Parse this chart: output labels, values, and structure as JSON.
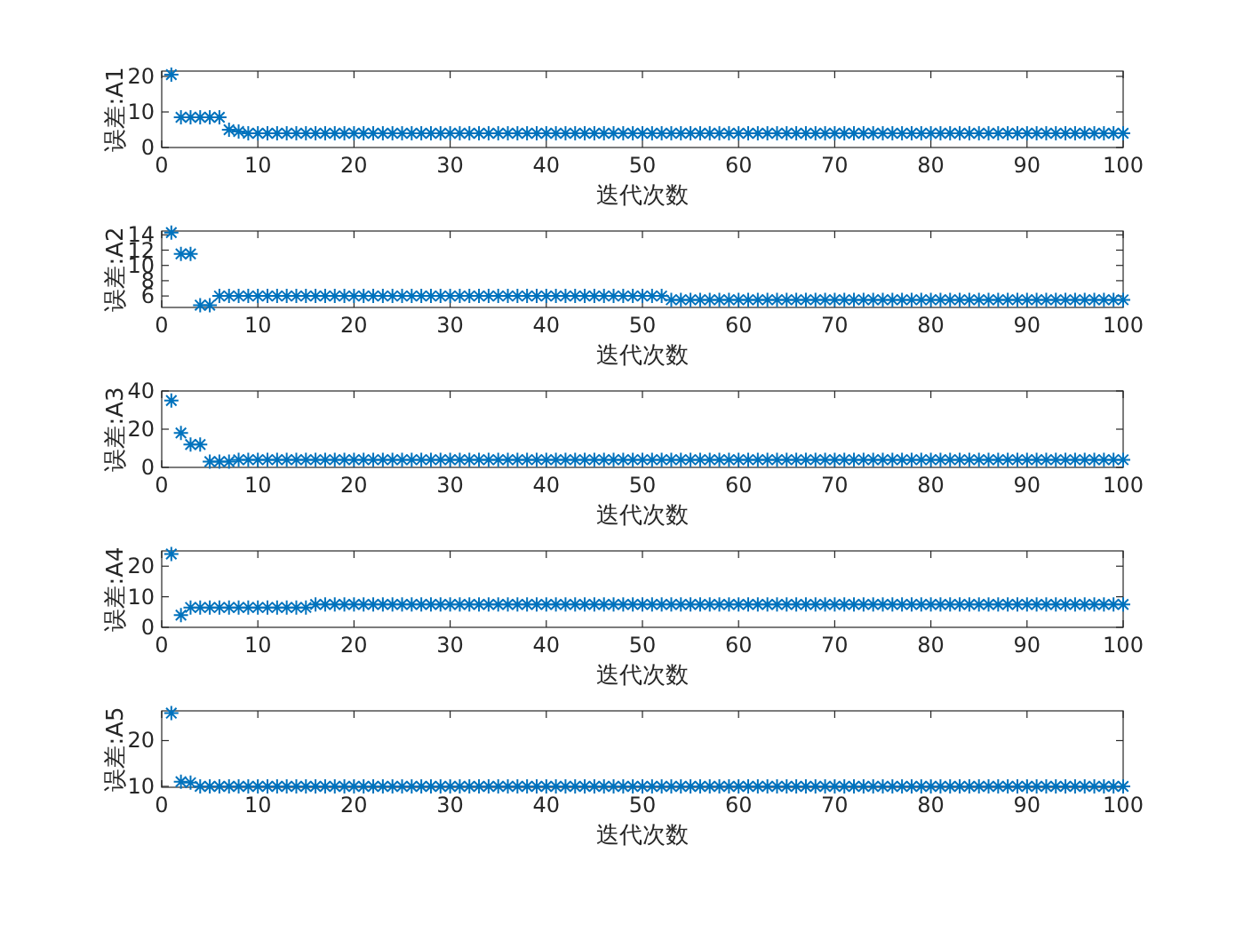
{
  "chart_data": [
    {
      "type": "scatter",
      "marker": "cross",
      "grid": false,
      "xlabel": "迭代次数",
      "ylabel": "误差:A1",
      "xlim": [
        0,
        100
      ],
      "xticks": [
        0,
        10,
        20,
        30,
        40,
        50,
        60,
        70,
        80,
        90,
        100
      ],
      "ylim": [
        0,
        21.5
      ],
      "yticks": [
        0,
        10,
        20
      ],
      "x": [
        1,
        2,
        3,
        4,
        5,
        6,
        7,
        8,
        9,
        10,
        11,
        12,
        13,
        14,
        15,
        16,
        17,
        18,
        19,
        20,
        21,
        22,
        23,
        24,
        25,
        26,
        27,
        28,
        29,
        30,
        31,
        32,
        33,
        34,
        35,
        36,
        37,
        38,
        39,
        40,
        41,
        42,
        43,
        44,
        45,
        46,
        47,
        48,
        49,
        50,
        51,
        52,
        53,
        54,
        55,
        56,
        57,
        58,
        59,
        60,
        61,
        62,
        63,
        64,
        65,
        66,
        67,
        68,
        69,
        70,
        71,
        72,
        73,
        74,
        75,
        76,
        77,
        78,
        79,
        80,
        81,
        82,
        83,
        84,
        85,
        86,
        87,
        88,
        89,
        90,
        91,
        92,
        93,
        94,
        95,
        96,
        97,
        98,
        99,
        100
      ],
      "series": [
        {
          "color": "#0072bd",
          "values": [
            20.5,
            8.5,
            8.5,
            8.5,
            8.5,
            8.5,
            5,
            4.5,
            4,
            4,
            4,
            4,
            4,
            4,
            4,
            4,
            4,
            4,
            4,
            4,
            4,
            4,
            4,
            4,
            4,
            4,
            4,
            4,
            4,
            4,
            4,
            4,
            4,
            4,
            4,
            4,
            4,
            4,
            4,
            4,
            4,
            4,
            4,
            4,
            4,
            4,
            4,
            4,
            4,
            4,
            4,
            4,
            4,
            4,
            4,
            4,
            4,
            4,
            4,
            4,
            4,
            4,
            4,
            4,
            4,
            4,
            4,
            4,
            4,
            4,
            4,
            4,
            4,
            4,
            4,
            4,
            4,
            4,
            4,
            4,
            4,
            4,
            4,
            4,
            4,
            4,
            4,
            4,
            4,
            4,
            4,
            4,
            4,
            4,
            4,
            4,
            4,
            4,
            4,
            4
          ]
        }
      ]
    },
    {
      "type": "scatter",
      "marker": "cross",
      "grid": false,
      "xlabel": "迭代次数",
      "ylabel": "误差:A2",
      "xlim": [
        0,
        100
      ],
      "xticks": [
        0,
        10,
        20,
        30,
        40,
        50,
        60,
        70,
        80,
        90,
        100
      ],
      "ylim": [
        4.5,
        14.5
      ],
      "yticks": [
        6,
        8,
        10,
        12,
        14
      ],
      "x": [
        1,
        2,
        3,
        4,
        5,
        6,
        7,
        8,
        9,
        10,
        11,
        12,
        13,
        14,
        15,
        16,
        17,
        18,
        19,
        20,
        21,
        22,
        23,
        24,
        25,
        26,
        27,
        28,
        29,
        30,
        31,
        32,
        33,
        34,
        35,
        36,
        37,
        38,
        39,
        40,
        41,
        42,
        43,
        44,
        45,
        46,
        47,
        48,
        49,
        50,
        51,
        52,
        53,
        54,
        55,
        56,
        57,
        58,
        59,
        60,
        61,
        62,
        63,
        64,
        65,
        66,
        67,
        68,
        69,
        70,
        71,
        72,
        73,
        74,
        75,
        76,
        77,
        78,
        79,
        80,
        81,
        82,
        83,
        84,
        85,
        86,
        87,
        88,
        89,
        90,
        91,
        92,
        93,
        94,
        95,
        96,
        97,
        98,
        99,
        100
      ],
      "series": [
        {
          "color": "#0072bd",
          "values": [
            14.3,
            11.5,
            11.5,
            4.8,
            4.8,
            6,
            6,
            6,
            6,
            6,
            6,
            6,
            6,
            6,
            6,
            6,
            6,
            6,
            6,
            6,
            6,
            6,
            6,
            6,
            6,
            6,
            6,
            6,
            6,
            6,
            6,
            6,
            6,
            6,
            6,
            6,
            6,
            6,
            6,
            6,
            6,
            6,
            6,
            6,
            6,
            6,
            6,
            6,
            6,
            6,
            6,
            6,
            5.5,
            5.5,
            5.5,
            5.5,
            5.5,
            5.5,
            5.5,
            5.5,
            5.5,
            5.5,
            5.5,
            5.5,
            5.5,
            5.5,
            5.5,
            5.5,
            5.5,
            5.5,
            5.5,
            5.5,
            5.5,
            5.5,
            5.5,
            5.5,
            5.5,
            5.5,
            5.5,
            5.5,
            5.5,
            5.5,
            5.5,
            5.5,
            5.5,
            5.5,
            5.5,
            5.5,
            5.5,
            5.5,
            5.5,
            5.5,
            5.5,
            5.5,
            5.5,
            5.5,
            5.5,
            5.5,
            5.5,
            5.5
          ]
        }
      ]
    },
    {
      "type": "scatter",
      "marker": "cross",
      "grid": false,
      "xlabel": "迭代次数",
      "ylabel": "误差:A3",
      "xlim": [
        0,
        100
      ],
      "xticks": [
        0,
        10,
        20,
        30,
        40,
        50,
        60,
        70,
        80,
        90,
        100
      ],
      "ylim": [
        0,
        40
      ],
      "yticks": [
        0,
        20,
        40
      ],
      "x": [
        1,
        2,
        3,
        4,
        5,
        6,
        7,
        8,
        9,
        10,
        11,
        12,
        13,
        14,
        15,
        16,
        17,
        18,
        19,
        20,
        21,
        22,
        23,
        24,
        25,
        26,
        27,
        28,
        29,
        30,
        31,
        32,
        33,
        34,
        35,
        36,
        37,
        38,
        39,
        40,
        41,
        42,
        43,
        44,
        45,
        46,
        47,
        48,
        49,
        50,
        51,
        52,
        53,
        54,
        55,
        56,
        57,
        58,
        59,
        60,
        61,
        62,
        63,
        64,
        65,
        66,
        67,
        68,
        69,
        70,
        71,
        72,
        73,
        74,
        75,
        76,
        77,
        78,
        79,
        80,
        81,
        82,
        83,
        84,
        85,
        86,
        87,
        88,
        89,
        90,
        91,
        92,
        93,
        94,
        95,
        96,
        97,
        98,
        99,
        100
      ],
      "series": [
        {
          "color": "#0072bd",
          "values": [
            35,
            18,
            12,
            12,
            3,
            3,
            3,
            4,
            4,
            4,
            4,
            4,
            4,
            4,
            4,
            4,
            4,
            4,
            4,
            4,
            4,
            4,
            4,
            4,
            4,
            4,
            4,
            4,
            4,
            4,
            4,
            4,
            4,
            4,
            4,
            4,
            4,
            4,
            4,
            4,
            4,
            4,
            4,
            4,
            4,
            4,
            4,
            4,
            4,
            4,
            4,
            4,
            4,
            4,
            4,
            4,
            4,
            4,
            4,
            4,
            4,
            4,
            4,
            4,
            4,
            4,
            4,
            4,
            4,
            4,
            4,
            4,
            4,
            4,
            4,
            4,
            4,
            4,
            4,
            4,
            4,
            4,
            4,
            4,
            4,
            4,
            4,
            4,
            4,
            4,
            4,
            4,
            4,
            4,
            4,
            4,
            4,
            4,
            4,
            4
          ]
        }
      ]
    },
    {
      "type": "scatter",
      "marker": "cross",
      "grid": false,
      "xlabel": "迭代次数",
      "ylabel": "误差:A4",
      "xlim": [
        0,
        100
      ],
      "xticks": [
        0,
        10,
        20,
        30,
        40,
        50,
        60,
        70,
        80,
        90,
        100
      ],
      "ylim": [
        0,
        25
      ],
      "yticks": [
        0,
        10,
        20
      ],
      "x": [
        1,
        2,
        3,
        4,
        5,
        6,
        7,
        8,
        9,
        10,
        11,
        12,
        13,
        14,
        15,
        16,
        17,
        18,
        19,
        20,
        21,
        22,
        23,
        24,
        25,
        26,
        27,
        28,
        29,
        30,
        31,
        32,
        33,
        34,
        35,
        36,
        37,
        38,
        39,
        40,
        41,
        42,
        43,
        44,
        45,
        46,
        47,
        48,
        49,
        50,
        51,
        52,
        53,
        54,
        55,
        56,
        57,
        58,
        59,
        60,
        61,
        62,
        63,
        64,
        65,
        66,
        67,
        68,
        69,
        70,
        71,
        72,
        73,
        74,
        75,
        76,
        77,
        78,
        79,
        80,
        81,
        82,
        83,
        84,
        85,
        86,
        87,
        88,
        89,
        90,
        91,
        92,
        93,
        94,
        95,
        96,
        97,
        98,
        99,
        100
      ],
      "series": [
        {
          "color": "#0072bd",
          "values": [
            24,
            4,
            6.5,
            6.5,
            6.5,
            6.5,
            6.5,
            6.5,
            6.5,
            6.5,
            6.5,
            6.5,
            6.5,
            6.5,
            6.5,
            7.5,
            7.5,
            7.5,
            7.5,
            7.5,
            7.5,
            7.5,
            7.5,
            7.5,
            7.5,
            7.5,
            7.5,
            7.5,
            7.5,
            7.5,
            7.5,
            7.5,
            7.5,
            7.5,
            7.5,
            7.5,
            7.5,
            7.5,
            7.5,
            7.5,
            7.5,
            7.5,
            7.5,
            7.5,
            7.5,
            7.5,
            7.5,
            7.5,
            7.5,
            7.5,
            7.5,
            7.5,
            7.5,
            7.5,
            7.5,
            7.5,
            7.5,
            7.5,
            7.5,
            7.5,
            7.5,
            7.5,
            7.5,
            7.5,
            7.5,
            7.5,
            7.5,
            7.5,
            7.5,
            7.5,
            7.5,
            7.5,
            7.5,
            7.5,
            7.5,
            7.5,
            7.5,
            7.5,
            7.5,
            7.5,
            7.5,
            7.5,
            7.5,
            7.5,
            7.5,
            7.5,
            7.5,
            7.5,
            7.5,
            7.5,
            7.5,
            7.5,
            7.5,
            7.5,
            7.5,
            7.5,
            7.5,
            7.5,
            7.5,
            7.5
          ]
        }
      ]
    },
    {
      "type": "scatter",
      "marker": "cross",
      "grid": false,
      "xlabel": "迭代次数",
      "ylabel": "误差:A5",
      "xlim": [
        0,
        100
      ],
      "xticks": [
        0,
        10,
        20,
        30,
        40,
        50,
        60,
        70,
        80,
        90,
        100
      ],
      "ylim": [
        9.8,
        26.5
      ],
      "yticks": [
        10,
        20
      ],
      "x": [
        1,
        2,
        3,
        4,
        5,
        6,
        7,
        8,
        9,
        10,
        11,
        12,
        13,
        14,
        15,
        16,
        17,
        18,
        19,
        20,
        21,
        22,
        23,
        24,
        25,
        26,
        27,
        28,
        29,
        30,
        31,
        32,
        33,
        34,
        35,
        36,
        37,
        38,
        39,
        40,
        41,
        42,
        43,
        44,
        45,
        46,
        47,
        48,
        49,
        50,
        51,
        52,
        53,
        54,
        55,
        56,
        57,
        58,
        59,
        60,
        61,
        62,
        63,
        64,
        65,
        66,
        67,
        68,
        69,
        70,
        71,
        72,
        73,
        74,
        75,
        76,
        77,
        78,
        79,
        80,
        81,
        82,
        83,
        84,
        85,
        86,
        87,
        88,
        89,
        90,
        91,
        92,
        93,
        94,
        95,
        96,
        97,
        98,
        99,
        100
      ],
      "series": [
        {
          "color": "#0072bd",
          "values": [
            26,
            11,
            10.8,
            10,
            10,
            10,
            10,
            10,
            10,
            10,
            10,
            10,
            10,
            10,
            10,
            10,
            10,
            10,
            10,
            10,
            10,
            10,
            10,
            10,
            10,
            10,
            10,
            10,
            10,
            10,
            10,
            10,
            10,
            10,
            10,
            10,
            10,
            10,
            10,
            10,
            10,
            10,
            10,
            10,
            10,
            10,
            10,
            10,
            10,
            10,
            10,
            10,
            10,
            10,
            10,
            10,
            10,
            10,
            10,
            10,
            10,
            10,
            10,
            10,
            10,
            10,
            10,
            10,
            10,
            10,
            10,
            10,
            10,
            10,
            10,
            10,
            10,
            10,
            10,
            10,
            10,
            10,
            10,
            10,
            10,
            10,
            10,
            10,
            10,
            10,
            10,
            10,
            10,
            10,
            10,
            10,
            10,
            10,
            10,
            10
          ]
        }
      ]
    }
  ]
}
